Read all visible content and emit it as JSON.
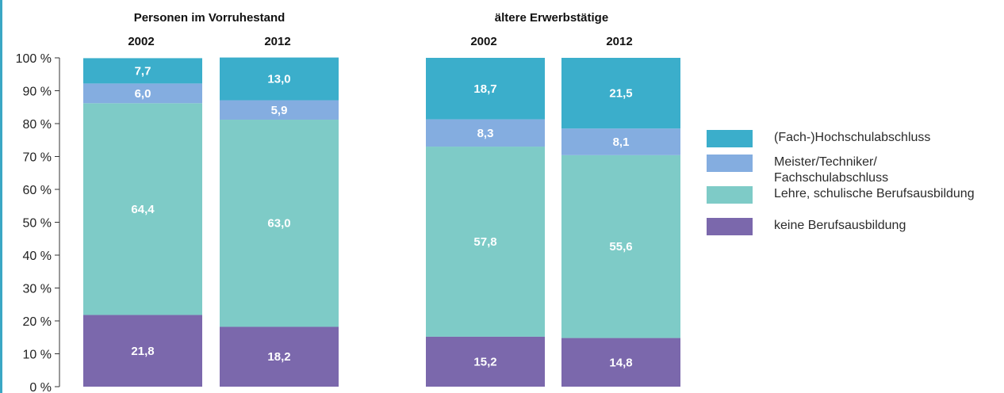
{
  "chart_data": {
    "type": "bar",
    "stacked": true,
    "groups": [
      {
        "title": "Personen im Vorruhestand",
        "categories": [
          "2002",
          "2012"
        ]
      },
      {
        "title": "ältere Erwerbstätige",
        "categories": [
          "2002",
          "2012"
        ]
      }
    ],
    "x": [
      "2002",
      "2012",
      "2002",
      "2012"
    ],
    "series": [
      {
        "name": "keine Berufsausbildung",
        "color": "#7b68ac",
        "values": [
          21.8,
          18.2,
          15.2,
          14.8
        ],
        "labels": [
          "21,8",
          "18,2",
          "15,2",
          "14,8"
        ]
      },
      {
        "name": "Lehre, schulische Berufsausbildung",
        "color": "#7ecbc7",
        "values": [
          64.4,
          63.0,
          57.8,
          55.6
        ],
        "labels": [
          "64,4",
          "63,0",
          "57,8",
          "55,6"
        ]
      },
      {
        "name": "Meister/Techniker/\nFachschulabschluss",
        "color": "#84ade0",
        "values": [
          6.0,
          5.9,
          8.3,
          8.1
        ],
        "labels": [
          "6,0",
          "5,9",
          "8,3",
          "8,1"
        ]
      },
      {
        "name": "(Fach-)Hochschulabschluss",
        "color": "#3baecb",
        "values": [
          7.7,
          13.0,
          18.7,
          21.5
        ],
        "labels": [
          "7,7",
          "13,0",
          "18,7",
          "21,5"
        ]
      }
    ],
    "yticks": [
      "0 %",
      "10 %",
      "20 %",
      "30 %",
      "40 %",
      "50 %",
      "60 %",
      "70 %",
      "80 %",
      "90 %",
      "100 %"
    ],
    "ylim": [
      0,
      100
    ],
    "grid": false,
    "legend_position": "right",
    "legend_order": [
      3,
      2,
      1,
      0
    ]
  }
}
